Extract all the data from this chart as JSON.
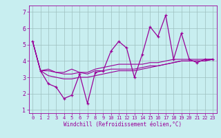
{
  "title": "",
  "xlabel": "Windchill (Refroidissement éolien,°C)",
  "background_color": "#c8eef0",
  "line_color": "#990099",
  "grid_color": "#9dbfbf",
  "x": [
    0,
    1,
    2,
    3,
    4,
    5,
    6,
    7,
    8,
    9,
    10,
    11,
    12,
    13,
    14,
    15,
    16,
    17,
    18,
    19,
    20,
    21,
    22,
    23
  ],
  "line1": [
    5.2,
    3.4,
    2.6,
    2.4,
    1.7,
    1.9,
    3.2,
    1.4,
    3.3,
    3.4,
    4.6,
    5.2,
    4.8,
    3.0,
    4.4,
    6.1,
    5.5,
    6.8,
    4.1,
    5.7,
    4.1,
    3.9,
    4.1,
    4.1
  ],
  "line2": [
    5.2,
    3.4,
    3.5,
    3.3,
    3.3,
    3.5,
    3.3,
    3.2,
    3.4,
    3.4,
    3.5,
    3.5,
    3.5,
    3.5,
    3.6,
    3.7,
    3.7,
    3.8,
    3.9,
    4.0,
    4.0,
    4.0,
    4.0,
    4.1
  ],
  "line3": [
    5.2,
    3.4,
    3.1,
    3.0,
    2.9,
    2.9,
    3.0,
    3.0,
    3.1,
    3.2,
    3.3,
    3.4,
    3.4,
    3.4,
    3.5,
    3.6,
    3.7,
    3.8,
    3.9,
    4.0,
    4.0,
    4.0,
    4.0,
    4.1
  ],
  "line4": [
    5.2,
    3.4,
    3.4,
    3.3,
    3.2,
    3.2,
    3.3,
    3.3,
    3.5,
    3.6,
    3.7,
    3.8,
    3.8,
    3.8,
    3.8,
    3.9,
    3.9,
    4.0,
    4.1,
    4.1,
    4.1,
    4.1,
    4.1,
    4.1
  ],
  "ylim": [
    0.8,
    7.4
  ],
  "xlim": [
    -0.5,
    23.5
  ],
  "yticks": [
    1,
    2,
    3,
    4,
    5,
    6,
    7
  ],
  "xticks": [
    0,
    1,
    2,
    3,
    4,
    5,
    6,
    7,
    8,
    9,
    10,
    11,
    12,
    13,
    14,
    15,
    16,
    17,
    18,
    19,
    20,
    21,
    22,
    23
  ]
}
